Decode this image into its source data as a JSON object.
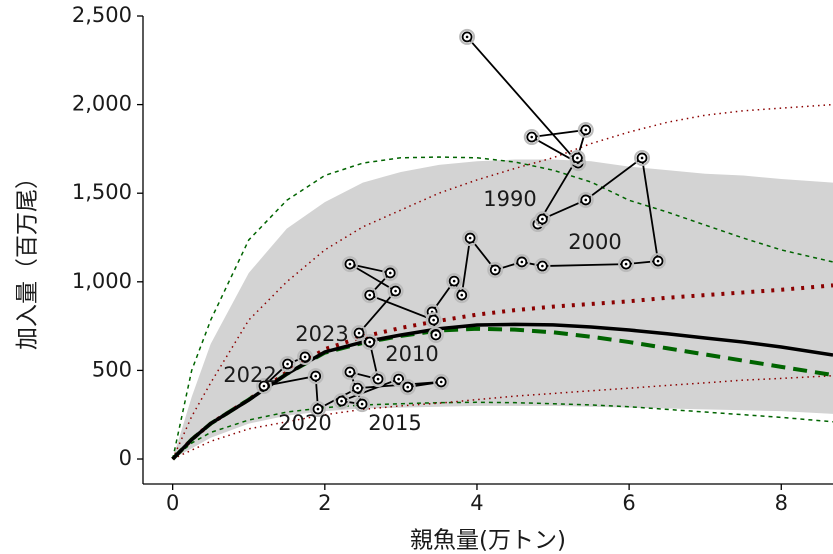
{
  "chart_data": {
    "type": "stock-recruitment",
    "xlabel": "親魚量(万トン)",
    "ylabel": "加入量（百万尾）",
    "xlim": [
      -0.39,
      8.68
    ],
    "ylim": [
      -141,
      2500
    ],
    "xticks": [
      0,
      2,
      4,
      6,
      8
    ],
    "yticks": [
      0,
      {
        "value": 500,
        "label": "500"
      },
      {
        "value": 1000,
        "label": "1,000"
      },
      {
        "value": 1500,
        "label": "1,500"
      },
      {
        "value": 2000,
        "label": "2,000"
      },
      {
        "value": 2500,
        "label": "2,500"
      }
    ],
    "grid": false,
    "curve_x": [
      0,
      0.25,
      0.5,
      1,
      1.5,
      2,
      2.5,
      3,
      3.5,
      4,
      4.5,
      5,
      5.5,
      6,
      6.5,
      7,
      7.5,
      8,
      8.68
    ],
    "band": {
      "color": "#d3d3d3",
      "lower": [
        0,
        60,
        120,
        200,
        245,
        270,
        285,
        290,
        295,
        300,
        300,
        300,
        295,
        290,
        285,
        280,
        275,
        270,
        255
      ],
      "upper": [
        0,
        350,
        650,
        1050,
        1300,
        1450,
        1560,
        1620,
        1660,
        1680,
        1690,
        1690,
        1680,
        1650,
        1630,
        1610,
        1600,
        1580,
        1560
      ]
    },
    "lines": [
      {
        "color": "#006400",
        "dash": "4 4",
        "width": 1.5,
        "values": [
          0,
          500,
          784,
          1236,
          1460,
          1600,
          1670,
          1700,
          1704,
          1700,
          1676,
          1630,
          1563,
          1460,
          1394,
          1320,
          1247,
          1180,
          1112
        ]
      },
      {
        "color": "#006400",
        "dash": "4 4",
        "width": 1.5,
        "values": [
          0,
          90,
          150,
          220,
          265,
          290,
          305,
          312,
          318,
          320,
          318,
          312,
          305,
          295,
          280,
          265,
          250,
          235,
          210
        ]
      },
      {
        "color": "#8b0000",
        "dash": "1.5 4",
        "width": 1.5,
        "values": [
          0,
          240,
          430,
          784,
          1000,
          1180,
          1310,
          1405,
          1500,
          1575,
          1640,
          1700,
          1780,
          1845,
          1900,
          1940,
          1965,
          1980,
          2000
        ]
      },
      {
        "color": "#8b0000",
        "dash": "1.5 4",
        "width": 1.5,
        "values": [
          0,
          50,
          100,
          170,
          210,
          250,
          280,
          300,
          315,
          335,
          355,
          370,
          385,
          400,
          415,
          430,
          445,
          455,
          470
        ]
      },
      {
        "color": "#8b0000",
        "dash": "3 7",
        "width": 4,
        "values": [
          0,
          110,
          200,
          335,
          490,
          620,
          690,
          740,
          780,
          815,
          840,
          860,
          875,
          890,
          910,
          925,
          940,
          955,
          980
        ]
      },
      {
        "color": "#006400",
        "dash": "14 8",
        "width": 4,
        "values": [
          0,
          110,
          200,
          335,
          480,
          600,
          655,
          695,
          725,
          735,
          730,
          715,
          690,
          660,
          625,
          590,
          555,
          520,
          474
        ]
      },
      {
        "color": "#000000",
        "dash": "",
        "width": 3.5,
        "values": [
          0,
          110,
          200,
          333,
          480,
          604,
          660,
          700,
          735,
          756,
          760,
          757,
          745,
          728,
          707,
          683,
          660,
          632,
          587
        ]
      }
    ],
    "points": {
      "color": "#000000",
      "x": [
        3.87,
        5.33,
        4.72,
        5.43,
        5.32,
        4.8,
        4.86,
        5.43,
        6.17,
        6.38,
        5.96,
        4.86,
        4.59,
        4.24,
        3.91,
        3.8,
        3.7,
        3.41,
        3.46,
        3.43,
        2.59,
        2.86,
        2.33,
        2.93,
        2.45,
        2.59,
        2.7,
        2.33,
        2.49,
        2.22,
        2.97,
        3.09,
        3.53,
        2.43,
        1.91,
        1.88,
        1.2,
        1.51,
        1.74
      ],
      "y": [
        2382,
        1670,
        1817,
        1857,
        1699,
        1326,
        1354,
        1462,
        1699,
        1117,
        1100,
        1089,
        1112,
        1067,
        1247,
        925,
        1004,
        830,
        700,
        784,
        925,
        1050,
        1100,
        948,
        711,
        660,
        451,
        491,
        310,
        327,
        451,
        406,
        435,
        400,
        282,
        468,
        412,
        536,
        576
      ]
    },
    "annotations": [
      "1990",
      "2000",
      "2010",
      "2015",
      "2020",
      "2022",
      "2023"
    ]
  }
}
